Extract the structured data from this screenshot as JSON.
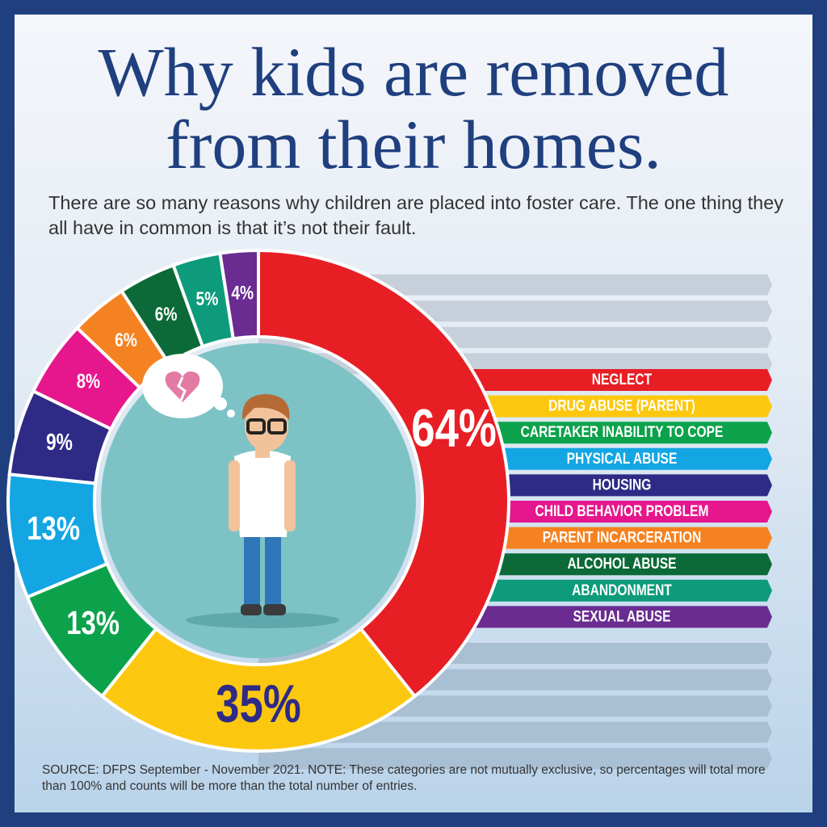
{
  "chart_data": {
    "type": "pie",
    "title": "Why kids are removed from their homes.",
    "subtitle": "There are so many reasons why children are placed into foster care. The one thing they all have in common is that it’s not their fault.",
    "categories": [
      "NEGLECT",
      "DRUG ABUSE (PARENT)",
      "CARETAKER INABILITY TO COPE",
      "PHYSICAL ABUSE",
      "HOUSING",
      "CHILD BEHAVIOR PROBLEM",
      "PARENT INCARCERATION",
      "ALCOHOL ABUSE",
      "ABANDONMENT",
      "SEXUAL ABUSE"
    ],
    "values": [
      64,
      35,
      13,
      13,
      9,
      8,
      6,
      6,
      5,
      4
    ],
    "value_labels": [
      "64%",
      "35%",
      "13%",
      "13%",
      "9%",
      "8%",
      "6%",
      "6%",
      "5%",
      "4%"
    ],
    "colors": [
      "#e81e25",
      "#fcc80f",
      "#0ca24b",
      "#13a6e2",
      "#2e2a86",
      "#e6168c",
      "#f58220",
      "#0b6a38",
      "#0d9b7b",
      "#6a2c91"
    ],
    "source": "SOURCE: DFPS September - November 2021. NOTE: These categories are not mutually exclusive, so percentages will total more than 100% and counts will be more than the total number of entries."
  }
}
